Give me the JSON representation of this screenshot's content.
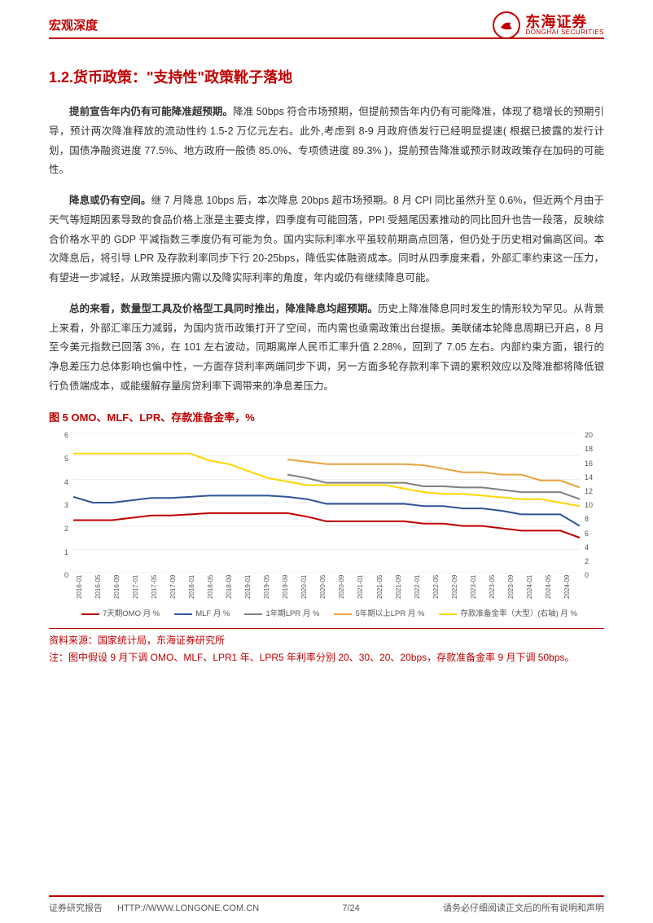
{
  "brand": {
    "report_type": "宏观深度",
    "cn": "东海证券",
    "en": "DONGHAI SECURITIES"
  },
  "title": "1.2.货币政策：\"支持性\"政策靴子落地",
  "p1": {
    "bold": "提前宣告年内仍有可能降准超预期。",
    "rest": "降准 50bps 符合市场预期，但提前预告年内仍有可能降准，体现了稳增长的预期引导，预计两次降准释放的流动性约 1.5-2 万亿元左右。此外,考虑到 8-9 月政府债发行已经明显提速( 根据已披露的发行计划，国债净融资进度 77.5%、地方政府一般债 85.0%、专项债进度 89.3% )，提前预告降准或预示财政政策存在加码的可能性。"
  },
  "p2": {
    "bold": "降息或仍有空间。",
    "rest": "继 7 月降息 10bps 后，本次降息 20bps 超市场预期。8 月 CPI 同比虽然升至 0.6%，但近两个月由于天气等短期因素导致的食品价格上涨是主要支撑，四季度有可能回落，PPI 受翘尾因素推动的同比回升也告一段落，反映综合价格水平的 GDP 平减指数三季度仍有可能为负。国内实际利率水平虽较前期高点回落，但仍处于历史相对偏高区间。本次降息后，将引导 LPR 及存款利率同步下行 20-25bps，降低实体融资成本。同时从四季度来看，外部汇率约束这一压力，有望进一步减轻，从政策提振内需以及降实际利率的角度，年内或仍有继续降息可能。"
  },
  "p3": {
    "bold": "总的来看，数量型工具及价格型工具同时推出，降准降息均超预期。",
    "rest": "历史上降准降息同时发生的情形较为罕见。从背景上来看，外部汇率压力减弱，为国内货币政策打开了空间，而内需也亟需政策出台提振。美联储本轮降息周期已开启，8 月至今美元指数已回落 3%，在 101 左右波动，同期离岸人民币汇率升值 2.28%，回到了 7.05 左右。内部约束方面，银行的净息差压力总体影响也偏中性，一方面存贷利率两端同步下调，另一方面多轮存款利率下调的累积效应以及降准都将降低银行负债端成本，或能缓解存量房贷利率下调带来的净息差压力。"
  },
  "chart": {
    "title": "图 5  OMO、MLF、LPR、存款准备金率，%",
    "left_axis": {
      "min": 0,
      "max": 6,
      "step": 1
    },
    "right_axis": {
      "min": 0,
      "max": 20,
      "step": 2
    },
    "x_labels": [
      "2016-01",
      "2016-05",
      "2016-09",
      "2017-01",
      "2017-05",
      "2017-09",
      "2018-01",
      "2018-05",
      "2018-09",
      "2019-01",
      "2019-05",
      "2019-09",
      "2020-01",
      "2020-05",
      "2020-09",
      "2021-01",
      "2021-05",
      "2021-09",
      "2022-01",
      "2022-05",
      "2022-09",
      "2023-01",
      "2023-05",
      "2023-09",
      "2024-01",
      "2024-05",
      "2024-09"
    ],
    "series": [
      {
        "name": "7天期OMO 月 %",
        "color": "#c00000",
        "axis": "L",
        "data": [
          2.25,
          2.25,
          2.25,
          2.35,
          2.45,
          2.45,
          2.5,
          2.55,
          2.55,
          2.55,
          2.55,
          2.55,
          2.4,
          2.2,
          2.2,
          2.2,
          2.2,
          2.2,
          2.1,
          2.1,
          2.0,
          2.0,
          1.9,
          1.8,
          1.8,
          1.8,
          1.5
        ]
      },
      {
        "name": "MLF 月 %",
        "color": "#2f5597",
        "axis": "L",
        "data": [
          3.25,
          3.0,
          3.0,
          3.1,
          3.2,
          3.2,
          3.25,
          3.3,
          3.3,
          3.3,
          3.3,
          3.25,
          3.15,
          2.95,
          2.95,
          2.95,
          2.95,
          2.95,
          2.85,
          2.85,
          2.75,
          2.75,
          2.65,
          2.5,
          2.5,
          2.5,
          2.0
        ]
      },
      {
        "name": "1年期LPR 月 %",
        "color": "#808080",
        "axis": "L",
        "data": [
          null,
          null,
          null,
          null,
          null,
          null,
          null,
          null,
          null,
          null,
          null,
          4.2,
          4.05,
          3.85,
          3.85,
          3.85,
          3.85,
          3.85,
          3.7,
          3.7,
          3.65,
          3.65,
          3.55,
          3.45,
          3.45,
          3.45,
          3.15
        ]
      },
      {
        "name": "5年期以上LPR 月 %",
        "color": "#e8a33d",
        "axis": "L",
        "data": [
          null,
          null,
          null,
          null,
          null,
          null,
          null,
          null,
          null,
          null,
          null,
          4.85,
          4.75,
          4.65,
          4.65,
          4.65,
          4.65,
          4.65,
          4.6,
          4.45,
          4.3,
          4.3,
          4.2,
          4.2,
          3.95,
          3.95,
          3.65
        ]
      },
      {
        "name": "存款准备金率（大型）(右轴) 月 %",
        "color": "#ffd500",
        "axis": "R",
        "data": [
          17.0,
          17.0,
          17.0,
          17.0,
          17.0,
          17.0,
          17.0,
          16.0,
          15.5,
          14.5,
          13.5,
          13.0,
          12.5,
          12.5,
          12.5,
          12.5,
          12.5,
          12.0,
          11.5,
          11.25,
          11.25,
          11.0,
          10.75,
          10.5,
          10.5,
          10.0,
          9.5
        ]
      }
    ],
    "grid_color": "#dddddd",
    "plot_bg": "#ffffff"
  },
  "source_lines": [
    "资料来源：国家统计局，东海证券研究所",
    "注：图中假设 9 月下调 OMO、MLF、LPR1 年、LPR5 年利率分别 20、30、20、20bps，存款准备金率 9 月下调 50bps。"
  ],
  "footer": {
    "left1": "证券研究报告",
    "left2": "HTTP://WWW.LONGONE.COM.CN",
    "page": "7/24",
    "right": "请务必仔细阅读正文后的所有说明和声明"
  }
}
